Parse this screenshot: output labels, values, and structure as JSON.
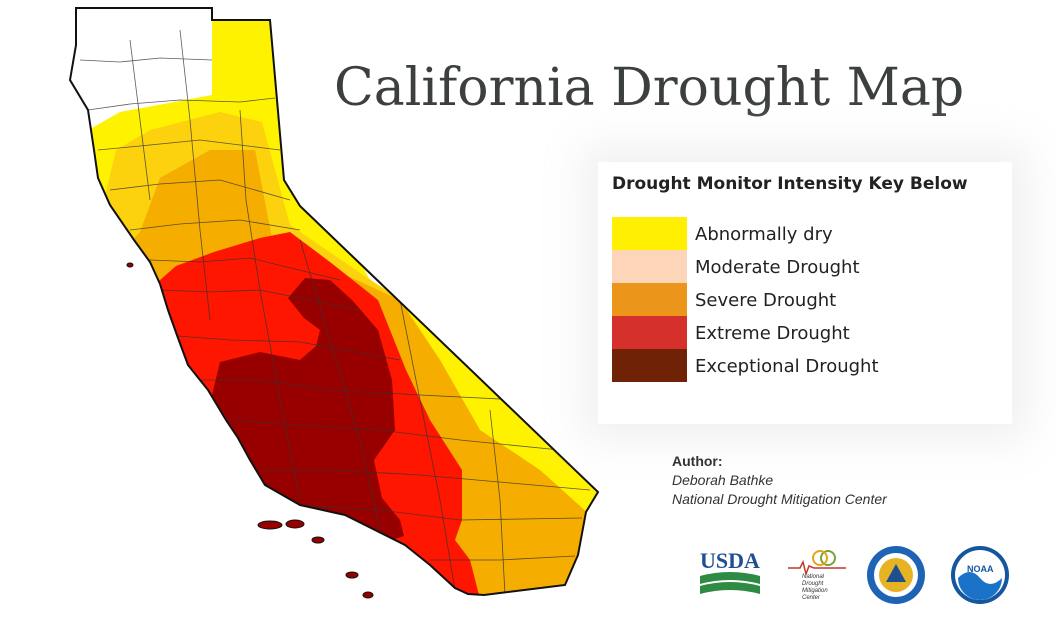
{
  "title": "California Drought Map",
  "legend": {
    "title": "Drought Monitor Intensity Key Below",
    "items": [
      {
        "label": "Abnormally dry",
        "color": "#ffef00"
      },
      {
        "label": "Moderate Drought",
        "color": "#fdd5b8"
      },
      {
        "label": "Severe Drought",
        "color": "#ec951b"
      },
      {
        "label": "Extreme Drought",
        "color": "#d5302c"
      },
      {
        "label": "Exceptional Drought",
        "color": "#6f2205"
      }
    ]
  },
  "author": {
    "heading": "Author:",
    "name": "Deborah Bathke",
    "org": "National Drought Mitigation Center"
  },
  "logos": {
    "usda": "USDA",
    "ndmc_lines": [
      "National",
      "Drought",
      "Mitigation",
      "Center"
    ],
    "noaa": "NOAA"
  },
  "map_colors": {
    "none": "#ffffff",
    "abnormally_dry": "#fff200",
    "moderate": "#fcd20e",
    "severe": "#f5ad00",
    "extreme": "#ff1600",
    "exceptional": "#980000",
    "border": "#111111"
  }
}
